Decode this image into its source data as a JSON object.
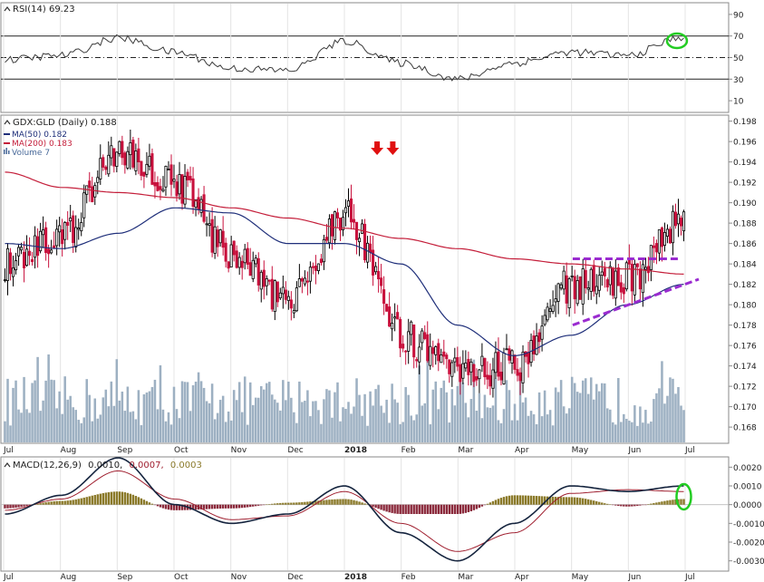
{
  "colors": {
    "background": "#ffffff",
    "frame": "#8a8a8a",
    "up_candle": "#000000",
    "down_candle": "#c8103c",
    "ma50": "#1f2f7a",
    "ma200": "#c41e3a",
    "volume": "#9db0c2",
    "rsi": "#3a3a3a",
    "macd": "#15243e",
    "macd_signal": "#a02030",
    "hist_pos": "#8b7a2a",
    "hist_neg": "#8b2a3c",
    "annotation_arrow": "#e01010",
    "trendline": "#9a2bd0",
    "highlight_circle": "#22cc22"
  },
  "rsi_panel": {
    "legend": "RSI(14) 69.23",
    "ticks": [
      "90",
      "70",
      "50",
      "30",
      "10"
    ],
    "tick_values": [
      90,
      70,
      50,
      30,
      10
    ],
    "overbought": 70,
    "oversold": 30,
    "midline": 50
  },
  "price_panel": {
    "legend_title": "GDX:GLD (Daily) 0.188",
    "legend_ma50": "MA(50) 0.182",
    "legend_ma200": "MA(200) 0.183",
    "legend_volume": "Volume 7",
    "ticks": [
      "0.198",
      "0.196",
      "0.194",
      "0.192",
      "0.190",
      "0.188",
      "0.186",
      "0.184",
      "0.182",
      "0.180",
      "0.178",
      "0.176",
      "0.174",
      "0.172",
      "0.170",
      "0.168"
    ],
    "tick_values": [
      0.198,
      0.196,
      0.194,
      0.192,
      0.19,
      0.188,
      0.186,
      0.184,
      0.182,
      0.18,
      0.178,
      0.176,
      0.174,
      0.172,
      0.17,
      0.168
    ]
  },
  "macd_panel": {
    "legend_name": "MACD(12,26,9)",
    "legend_macd": "0.0010,",
    "legend_signal": "0.0007,",
    "legend_hist": "0.0003",
    "ticks": [
      "0.0020",
      "0.0010",
      "0.0000",
      "-0.0010",
      "-0.0020",
      "-0.0030"
    ],
    "tick_values": [
      0.002,
      0.001,
      0.0,
      -0.001,
      -0.002,
      -0.003
    ]
  },
  "x_axis_labels": [
    "Jul",
    "Aug",
    "Sep",
    "Oct",
    "Nov",
    "Dec",
    "2018",
    "Feb",
    "Mar",
    "Apr",
    "May",
    "Jun",
    "Jul"
  ],
  "chart_data": {
    "type": "line",
    "title": "GDX:GLD (Daily)",
    "x": [
      "Jul",
      "Aug",
      "Sep",
      "Oct",
      "Nov",
      "Dec",
      "2018",
      "Feb",
      "Mar",
      "Apr",
      "May",
      "Jun",
      "Jul"
    ],
    "ylim": [
      0.1665,
      0.1985
    ],
    "series": [
      {
        "name": "GDX:GLD",
        "values": [
          0.184,
          0.1865,
          0.195,
          0.192,
          0.185,
          0.18,
          0.189,
          0.177,
          0.173,
          0.174,
          0.182,
          0.1825,
          0.188
        ]
      },
      {
        "name": "MA(50)",
        "values": [
          0.186,
          0.1855,
          0.187,
          0.1895,
          0.189,
          0.186,
          0.186,
          0.184,
          0.178,
          0.175,
          0.177,
          0.18,
          0.182
        ]
      },
      {
        "name": "MA(200)",
        "values": [
          0.193,
          0.1915,
          0.191,
          0.1905,
          0.1895,
          0.1885,
          0.1875,
          0.1865,
          0.1855,
          0.1845,
          0.184,
          0.1835,
          0.183
        ]
      }
    ],
    "rsi": {
      "name": "RSI(14)",
      "ylim": [
        0,
        100
      ],
      "values": [
        48,
        52,
        68,
        55,
        40,
        38,
        65,
        45,
        30,
        45,
        55,
        52,
        69
      ]
    },
    "macd": {
      "name": "MACD(12,26,9)",
      "ylim": [
        -0.0035,
        0.0025
      ],
      "macd_values": [
        -0.0005,
        0.0005,
        0.0025,
        0.0,
        -0.001,
        -0.0005,
        0.001,
        -0.0015,
        -0.003,
        -0.001,
        0.001,
        0.0007,
        0.001
      ],
      "signal_values": [
        -0.0003,
        0.0003,
        0.0018,
        0.0003,
        -0.0008,
        -0.0006,
        0.0007,
        -0.001,
        -0.0025,
        -0.0015,
        0.0006,
        0.0008,
        0.0007
      ]
    },
    "annotations": {
      "double_top_arrows": 2,
      "resistance_level": 0.1845,
      "support_trendline": [
        0.178,
        0.1825
      ]
    }
  }
}
